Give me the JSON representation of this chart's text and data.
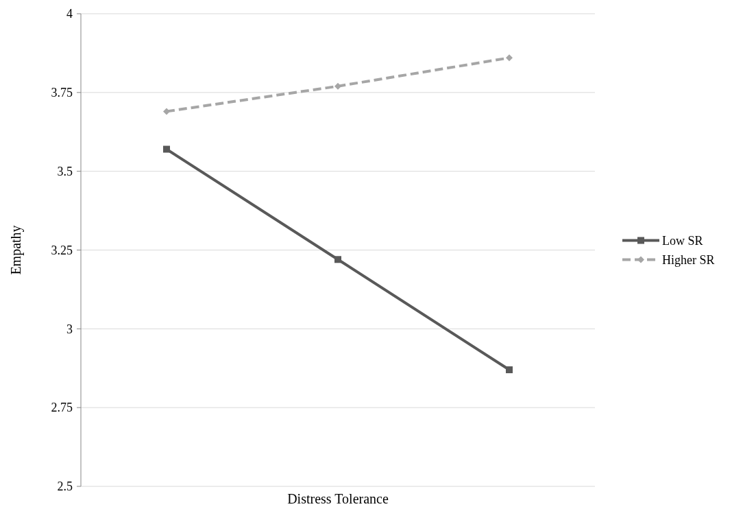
{
  "chart_data": {
    "type": "line",
    "xlabel": "Distress Tolerance",
    "ylabel": "Empathy",
    "categories": [
      null,
      null,
      null
    ],
    "ylim": [
      2.5,
      4
    ],
    "yticks": [
      2.5,
      2.75,
      3,
      3.25,
      3.5,
      3.75,
      4
    ],
    "grid": "y",
    "legend": "right",
    "series": [
      {
        "name": "Low SR",
        "color": "#595959",
        "values": [
          3.57,
          3.22,
          2.87
        ],
        "marker": "square",
        "line_style": "solid"
      },
      {
        "name": "Higher SR",
        "color": "#a6a6a6",
        "values": [
          3.69,
          3.77,
          3.86
        ],
        "marker": "diamond",
        "line_style": "dashed"
      }
    ]
  }
}
